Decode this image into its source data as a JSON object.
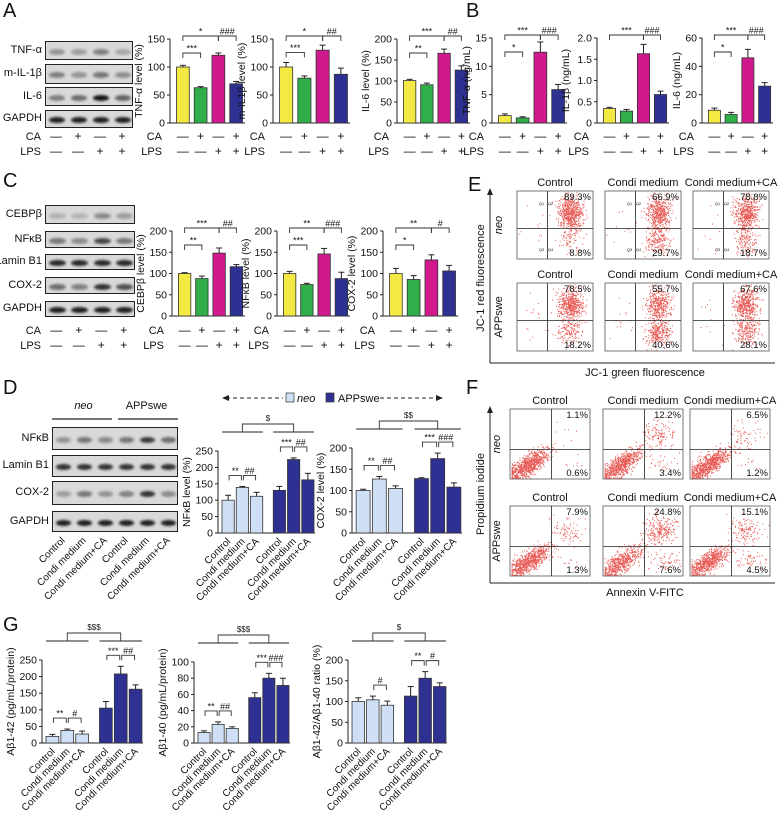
{
  "panels": {
    "A": "A",
    "B": "B",
    "C": "C",
    "D": "D",
    "E": "E",
    "F": "F",
    "G": "G"
  },
  "treatment_labels": {
    "ca": "CA",
    "lps": "LPS"
  },
  "signs": {
    "ca": [
      "—",
      "+",
      "—",
      "+"
    ],
    "lps": [
      "—",
      "—",
      "+",
      "+"
    ]
  },
  "blots": {
    "A": {
      "rows": [
        "TNF-α",
        "m-IL-1β",
        "IL-6",
        "GAPDH"
      ]
    },
    "C": {
      "rows": [
        "CEBPβ",
        "NFκB",
        "Lamin B1",
        "COX-2",
        "GAPDH"
      ]
    },
    "D": {
      "rows": [
        "NFκB",
        "Lamin B1",
        "COX-2",
        "GAPDH"
      ],
      "groups": [
        "neo",
        "APPswe"
      ],
      "lanes": [
        "Control",
        "Condi medium",
        "Condi medium+CA",
        "Control",
        "Condi medium",
        "Condi medium+CA"
      ]
    }
  },
  "legend": {
    "neo": "neo",
    "app": "APPswe"
  },
  "colors": {
    "control": "#f4e842",
    "ca": "#2fae49",
    "lps": "#d0198c",
    "ca_lps": "#2e3192",
    "neo": "#cfe0f6",
    "app": "#2e3192",
    "flow_dots": "#e0261f"
  },
  "chart_data": [
    {
      "id": "A1",
      "type": "bar",
      "ylabel": "TNF-α level (%)",
      "yticks": [
        "0",
        "50",
        "100",
        "150"
      ],
      "ylim": [
        0,
        150
      ],
      "values": [
        100,
        63,
        121,
        70
      ],
      "errors": [
        3,
        2,
        4,
        4
      ],
      "bar_colors": [
        "#f4e842",
        "#2fae49",
        "#d0198c",
        "#2e3192"
      ],
      "brackets": [
        {
          "between": [
            0,
            1
          ],
          "label": "***"
        },
        {
          "between": [
            0,
            2
          ],
          "label": "*"
        },
        {
          "between": [
            2,
            3
          ],
          "label": "###"
        }
      ]
    },
    {
      "id": "A2",
      "type": "bar",
      "ylabel": "m-IL1β level (%)",
      "yticks": [
        "0",
        "50",
        "100",
        "150"
      ],
      "ylim": [
        0,
        150
      ],
      "values": [
        100,
        80,
        130,
        87
      ],
      "errors": [
        8,
        4,
        9,
        11
      ],
      "bar_colors": [
        "#f4e842",
        "#2fae49",
        "#d0198c",
        "#2e3192"
      ],
      "brackets": [
        {
          "between": [
            0,
            1
          ],
          "label": "***"
        },
        {
          "between": [
            0,
            2
          ],
          "label": "*"
        },
        {
          "between": [
            2,
            3
          ],
          "label": "##"
        }
      ]
    },
    {
      "id": "A3",
      "type": "bar",
      "ylabel": "IL-6 level (%)",
      "yticks": [
        "0",
        "50",
        "100",
        "150",
        "200"
      ],
      "ylim": [
        0,
        200
      ],
      "values": [
        101,
        91,
        166,
        126
      ],
      "errors": [
        3,
        4,
        10,
        10
      ],
      "bar_colors": [
        "#f4e842",
        "#2fae49",
        "#d0198c",
        "#2e3192"
      ],
      "brackets": [
        {
          "between": [
            0,
            1
          ],
          "label": "**"
        },
        {
          "between": [
            0,
            2
          ],
          "label": "***"
        },
        {
          "between": [
            2,
            3
          ],
          "label": "##"
        }
      ]
    },
    {
      "id": "B1",
      "type": "bar",
      "ylabel": "TNF-α (ng/mL)",
      "yticks": [
        "0",
        "5",
        "10",
        "15"
      ],
      "ylim": [
        0,
        15
      ],
      "values": [
        1.3,
        0.9,
        12.5,
        5.9
      ],
      "errors": [
        0.3,
        0.2,
        1.8,
        0.9
      ],
      "bar_colors": [
        "#f4e842",
        "#2fae49",
        "#d0198c",
        "#2e3192"
      ],
      "brackets": [
        {
          "between": [
            0,
            1
          ],
          "label": "*"
        },
        {
          "between": [
            0,
            2
          ],
          "label": "***"
        },
        {
          "between": [
            2,
            3
          ],
          "label": "###"
        }
      ]
    },
    {
      "id": "B2",
      "type": "bar",
      "ylabel": "IL-1β (ng/mL)",
      "yticks": [
        "0",
        "0.5",
        "1.0",
        "1.5",
        "2.0"
      ],
      "ylim": [
        0,
        2
      ],
      "values": [
        0.34,
        0.28,
        1.63,
        0.67
      ],
      "errors": [
        0.03,
        0.04,
        0.22,
        0.08
      ],
      "bar_colors": [
        "#f4e842",
        "#2fae49",
        "#d0198c",
        "#2e3192"
      ],
      "brackets": [
        {
          "between": [
            0,
            2
          ],
          "label": "***"
        },
        {
          "between": [
            2,
            3
          ],
          "label": "###"
        }
      ]
    },
    {
      "id": "B3",
      "type": "bar",
      "ylabel": "IL-6 (ng/mL)",
      "yticks": [
        "0",
        "20",
        "40",
        "60"
      ],
      "ylim": [
        0,
        60
      ],
      "values": [
        9,
        6,
        46,
        26
      ],
      "errors": [
        1.5,
        1.5,
        6,
        2.5
      ],
      "bar_colors": [
        "#f4e842",
        "#2fae49",
        "#d0198c",
        "#2e3192"
      ],
      "brackets": [
        {
          "between": [
            0,
            1
          ],
          "label": "*"
        },
        {
          "between": [
            0,
            2
          ],
          "label": "***"
        },
        {
          "between": [
            2,
            3
          ],
          "label": "###"
        }
      ]
    },
    {
      "id": "C1",
      "type": "bar",
      "ylabel": "CEBPβ level (%)",
      "yticks": [
        "0",
        "50",
        "100",
        "150",
        "200"
      ],
      "ylim": [
        0,
        200
      ],
      "values": [
        100,
        88,
        148,
        116
      ],
      "errors": [
        2,
        6,
        12,
        5
      ],
      "bar_colors": [
        "#f4e842",
        "#2fae49",
        "#d0198c",
        "#2e3192"
      ],
      "brackets": [
        {
          "between": [
            0,
            1
          ],
          "label": "**"
        },
        {
          "between": [
            0,
            2
          ],
          "label": "***"
        },
        {
          "between": [
            2,
            3
          ],
          "label": "##"
        }
      ]
    },
    {
      "id": "C2",
      "type": "bar",
      "ylabel": "NFκB level (%)",
      "yticks": [
        "0",
        "50",
        "100",
        "150",
        "200"
      ],
      "ylim": [
        0,
        200
      ],
      "values": [
        100,
        74,
        146,
        88
      ],
      "errors": [
        5,
        3,
        13,
        15
      ],
      "bar_colors": [
        "#f4e842",
        "#2fae49",
        "#d0198c",
        "#2e3192"
      ],
      "brackets": [
        {
          "between": [
            0,
            1
          ],
          "label": "***"
        },
        {
          "between": [
            0,
            2
          ],
          "label": "**"
        },
        {
          "between": [
            2,
            3
          ],
          "label": "###"
        }
      ]
    },
    {
      "id": "C3",
      "type": "bar",
      "ylabel": "COX-2 level (%)",
      "yticks": [
        "0",
        "50",
        "100",
        "150",
        "200"
      ],
      "ylim": [
        0,
        200
      ],
      "values": [
        100,
        86,
        132,
        106
      ],
      "errors": [
        12,
        9,
        12,
        13
      ],
      "bar_colors": [
        "#f4e842",
        "#2fae49",
        "#d0198c",
        "#2e3192"
      ],
      "brackets": [
        {
          "between": [
            0,
            1
          ],
          "label": "*"
        },
        {
          "between": [
            0,
            2
          ],
          "label": "**"
        },
        {
          "between": [
            2,
            3
          ],
          "label": "#"
        }
      ]
    },
    {
      "id": "D1",
      "type": "bar",
      "ylabel": "NFκB level (%)",
      "yticks": [
        "0",
        "50",
        "100",
        "150",
        "200",
        "250"
      ],
      "ylim": [
        0,
        250
      ],
      "categories": [
        "Control",
        "Condi medium",
        "Condi medium+CA",
        "Control",
        "Condi medium",
        "Condi medium+CA"
      ],
      "values": [
        100,
        139,
        112,
        130,
        224,
        162
      ],
      "errors": [
        15,
        3,
        12,
        12,
        5,
        20
      ],
      "bar_colors": [
        "#cfe0f6",
        "#cfe0f6",
        "#cfe0f6",
        "#2e3192",
        "#2e3192",
        "#2e3192"
      ],
      "brackets": [
        {
          "between": [
            0,
            1
          ],
          "label": "**"
        },
        {
          "between": [
            1,
            2
          ],
          "label": "##"
        },
        {
          "between": [
            3,
            4
          ],
          "label": "***"
        },
        {
          "between": [
            4,
            5
          ],
          "label": "##"
        }
      ],
      "group_bracket": {
        "label": "$"
      }
    },
    {
      "id": "D2",
      "type": "bar",
      "ylabel": "COX-2 level (%)",
      "yticks": [
        "0",
        "50",
        "100",
        "150",
        "200"
      ],
      "ylim": [
        0,
        200
      ],
      "categories": [
        "Control",
        "Condi medium",
        "Condi medium+CA",
        "Control",
        "Condi medium",
        "Condi medium+CA"
      ],
      "values": [
        100,
        127,
        105,
        128,
        175,
        108
      ],
      "errors": [
        3,
        6,
        6,
        2,
        13,
        10
      ],
      "bar_colors": [
        "#cfe0f6",
        "#cfe0f6",
        "#cfe0f6",
        "#2e3192",
        "#2e3192",
        "#2e3192"
      ],
      "brackets": [
        {
          "between": [
            0,
            1
          ],
          "label": "**"
        },
        {
          "between": [
            1,
            2
          ],
          "label": "##"
        },
        {
          "between": [
            3,
            4
          ],
          "label": "***"
        },
        {
          "between": [
            4,
            5
          ],
          "label": "###"
        }
      ],
      "group_bracket": {
        "label": "$$"
      }
    },
    {
      "id": "G1",
      "type": "bar",
      "ylabel": "Aβ1-42 (pg/mL/protein)",
      "yticks": [
        "0",
        "50",
        "100",
        "150",
        "200",
        "250"
      ],
      "ylim": [
        0,
        250
      ],
      "categories": [
        "Control",
        "Condi medium",
        "Condi medium+CA",
        "Control",
        "Condi medium",
        "Condi medium+CA"
      ],
      "values": [
        20,
        38,
        27,
        105,
        208,
        162
      ],
      "errors": [
        6,
        4,
        9,
        20,
        23,
        13
      ],
      "bar_colors": [
        "#cfe0f6",
        "#cfe0f6",
        "#cfe0f6",
        "#2e3192",
        "#2e3192",
        "#2e3192"
      ],
      "brackets": [
        {
          "between": [
            0,
            1
          ],
          "label": "**"
        },
        {
          "between": [
            1,
            2
          ],
          "label": "#"
        },
        {
          "between": [
            3,
            4
          ],
          "label": "***"
        },
        {
          "between": [
            4,
            5
          ],
          "label": "##"
        }
      ],
      "group_bracket": {
        "label": "$$$"
      }
    },
    {
      "id": "G2",
      "type": "bar",
      "ylabel": "Aβ1-40 (pg/mL/protein)",
      "yticks": [
        "0",
        "20",
        "40",
        "60",
        "80",
        "100"
      ],
      "ylim": [
        0,
        100
      ],
      "categories": [
        "Control",
        "Condi medium",
        "Condi medium+CA",
        "Control",
        "Condi medium",
        "Condi medium+CA"
      ],
      "values": [
        13,
        23,
        18,
        56,
        80,
        71
      ],
      "errors": [
        2,
        3,
        2,
        6,
        6,
        9
      ],
      "bar_colors": [
        "#cfe0f6",
        "#cfe0f6",
        "#cfe0f6",
        "#2e3192",
        "#2e3192",
        "#2e3192"
      ],
      "brackets": [
        {
          "between": [
            0,
            1
          ],
          "label": "**"
        },
        {
          "between": [
            1,
            2
          ],
          "label": "##"
        },
        {
          "between": [
            3,
            4
          ],
          "label": "***"
        },
        {
          "between": [
            4,
            5
          ],
          "label": "###"
        }
      ],
      "group_bracket": {
        "label": "$$$"
      }
    },
    {
      "id": "G3",
      "type": "bar",
      "ylabel": "Aβ1-42/Aβ1-40 ratio (%)",
      "yticks": [
        "0",
        "50",
        "100",
        "150",
        "200"
      ],
      "ylim": [
        0,
        200
      ],
      "categories": [
        "Control",
        "Condi medium",
        "Condi medium+CA",
        "Control",
        "Condi medium",
        "Condi medium+CA"
      ],
      "values": [
        100,
        104,
        91,
        113,
        156,
        136
      ],
      "errors": [
        9,
        9,
        10,
        23,
        16,
        9
      ],
      "bar_colors": [
        "#cfe0f6",
        "#cfe0f6",
        "#cfe0f6",
        "#2e3192",
        "#2e3192",
        "#2e3192"
      ],
      "brackets": [
        {
          "between": [
            1,
            2
          ],
          "label": "#"
        },
        {
          "between": [
            3,
            4
          ],
          "label": "**"
        },
        {
          "between": [
            4,
            5
          ],
          "label": "#"
        }
      ],
      "group_bracket": {
        "label": "$"
      }
    }
  ],
  "flow": {
    "E": {
      "xlabel": "JC-1 green fluorescence",
      "ylabel": "JC-1 red fluorescence",
      "rows": [
        "neo",
        "APPswe"
      ],
      "cols": [
        "Control",
        "Condi medium",
        "Condi medium+CA"
      ],
      "quadrant_labels": [
        "Q1",
        "Q2",
        "Q3",
        "Q4"
      ],
      "upper_right": [
        [
          "89.3%",
          "66.9%",
          "78.8%"
        ],
        [
          "78.5%",
          "55.7%",
          "67.6%"
        ]
      ],
      "lower_right": [
        [
          "8.8%",
          "29.7%",
          "18.7%"
        ],
        [
          "18.2%",
          "40.6%",
          "28.1%"
        ]
      ]
    },
    "F": {
      "xlabel": "Annexin V-FITC",
      "ylabel": "Propidium iodide",
      "rows": [
        "neo",
        "APPswe"
      ],
      "cols": [
        "Control",
        "Condi medium",
        "Condi medium+CA"
      ],
      "upper_right": [
        [
          "1.1%",
          "12.2%",
          "6.5%"
        ],
        [
          "7.9%",
          "24.8%",
          "15.1%"
        ]
      ],
      "lower_right": [
        [
          "0.6%",
          "3.4%",
          "1.2%"
        ],
        [
          "1.3%",
          "7.6%",
          "4.5%"
        ]
      ]
    }
  }
}
